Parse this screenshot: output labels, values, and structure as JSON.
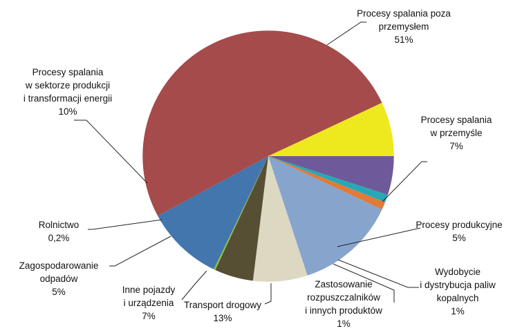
{
  "chart_data": {
    "type": "pie",
    "title": "",
    "start_angle_deg": 0,
    "direction": "clockwise",
    "slices": [
      {
        "key": "procesy-produkcyjne",
        "label_lines": [
          "Procesy produkcyjne",
          "5%"
        ],
        "value": 5,
        "color": "#6e5a9a"
      },
      {
        "key": "wydobycie",
        "label_lines": [
          "Wydobycie",
          "i dystrybucja paliw",
          "kopalnych",
          "1%"
        ],
        "value": 1,
        "color": "#27a9b5"
      },
      {
        "key": "rozpuszczalniki",
        "label_lines": [
          "Zastosowanie",
          "rozpuszczalników",
          "i innych produktów",
          "1%"
        ],
        "value": 1,
        "color": "#e07b39"
      },
      {
        "key": "transport-drogowy",
        "label_lines": [
          "Transport drogowy",
          "13%"
        ],
        "value": 13,
        "color": "#87a4cc"
      },
      {
        "key": "inne-pojazdy",
        "label_lines": [
          "Inne pojazdy",
          "i urządzenia",
          "7%"
        ],
        "value": 7,
        "color": "#dcd8c2"
      },
      {
        "key": "odpady",
        "label_lines": [
          "Zagospodarowanie",
          "odpadów",
          "5%"
        ],
        "value": 5,
        "color": "#574f33"
      },
      {
        "key": "rolnictwo",
        "label_lines": [
          "Rolnictwo",
          "0,2%"
        ],
        "value": 0.2,
        "color": "#8bc540"
      },
      {
        "key": "energetyka",
        "label_lines": [
          "Procesy spalania",
          "w sektorze produkcji",
          "i transformacji energii",
          "10%"
        ],
        "value": 10,
        "color": "#4276ad"
      },
      {
        "key": "poza-przemyslem",
        "label_lines": [
          "Procesy spalania poza",
          "przemysłem",
          "51%"
        ],
        "value": 51,
        "color": "#a54b4b"
      },
      {
        "key": "przemysl",
        "label_lines": [
          "Procesy spalania",
          "w przemyśle",
          "7%"
        ],
        "value": 7,
        "color": "#eee81f"
      }
    ]
  }
}
